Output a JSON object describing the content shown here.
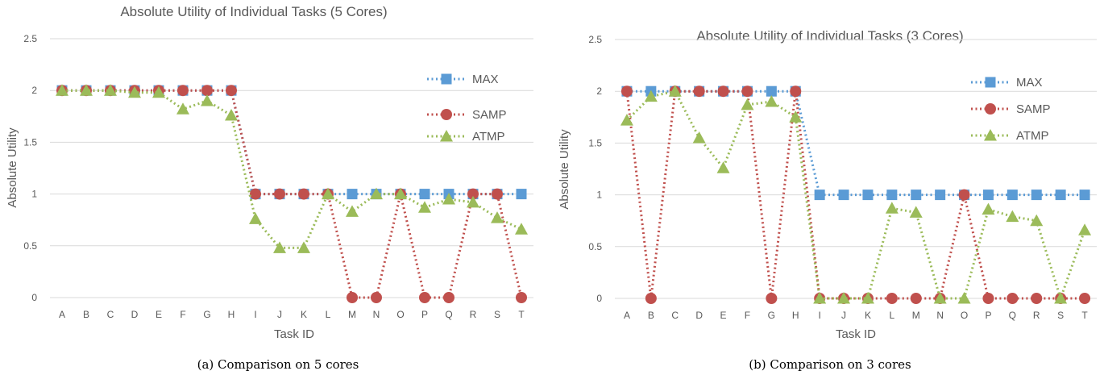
{
  "colors": {
    "MAX": "#5b9bd5",
    "SAMP": "#c0504d",
    "ATMP": "#9bbb59",
    "grid": "#d9d9d9",
    "text": "#595959"
  },
  "chart_data": [
    {
      "type": "line",
      "title": "Absolute Utility of Individual Tasks (5 Cores)",
      "xlabel": "Task ID",
      "ylabel": "Absolute Utility",
      "caption": "(a) Comparison on 5 cores",
      "categories": [
        "A",
        "B",
        "C",
        "D",
        "E",
        "F",
        "G",
        "H",
        "I",
        "J",
        "K",
        "L",
        "M",
        "N",
        "O",
        "P",
        "Q",
        "R",
        "S",
        "T"
      ],
      "ylim": [
        0,
        2.5
      ],
      "yticks": [
        "0",
        "0.5",
        "1",
        "1.5",
        "2",
        "2.5"
      ],
      "grid": true,
      "legend_position": "top-right",
      "series": [
        {
          "name": "MAX",
          "marker": "square",
          "values": [
            2,
            2,
            2,
            2,
            2,
            2,
            2,
            2,
            1,
            1,
            1,
            1,
            1,
            1,
            1,
            1,
            1,
            1,
            1,
            1
          ]
        },
        {
          "name": "SAMP",
          "marker": "circle",
          "values": [
            2,
            2,
            2,
            2,
            2,
            2,
            2,
            2,
            1,
            1,
            1,
            1,
            0,
            0,
            1,
            0,
            0,
            1,
            1,
            0
          ]
        },
        {
          "name": "ATMP",
          "marker": "triangle",
          "values": [
            2,
            2,
            2,
            1.98,
            1.98,
            1.82,
            1.9,
            1.76,
            0.76,
            0.48,
            0.48,
            1,
            0.83,
            1,
            1,
            0.87,
            0.95,
            0.92,
            0.77,
            0.66
          ]
        }
      ]
    },
    {
      "type": "line",
      "title": "Absolute Utility of Individual Tasks (3 Cores)",
      "xlabel": "Task ID",
      "ylabel": "Absolute Utility",
      "caption": "(b) Comparison on 3 cores",
      "categories": [
        "A",
        "B",
        "C",
        "D",
        "E",
        "F",
        "G",
        "H",
        "I",
        "J",
        "K",
        "L",
        "M",
        "N",
        "O",
        "P",
        "Q",
        "R",
        "S",
        "T"
      ],
      "ylim": [
        0,
        2.5
      ],
      "yticks": [
        "0",
        "0.5",
        "1",
        "1.5",
        "2",
        "2.5"
      ],
      "grid": true,
      "legend_position": "top-right",
      "series": [
        {
          "name": "MAX",
          "marker": "square",
          "values": [
            2,
            2,
            2,
            2,
            2,
            2,
            2,
            2,
            1,
            1,
            1,
            1,
            1,
            1,
            1,
            1,
            1,
            1,
            1,
            1
          ]
        },
        {
          "name": "SAMP",
          "marker": "circle",
          "values": [
            2,
            0,
            2,
            2,
            2,
            2,
            0,
            2,
            0,
            0,
            0,
            0,
            0,
            0,
            1,
            0,
            0,
            0,
            0,
            0
          ]
        },
        {
          "name": "ATMP",
          "marker": "triangle",
          "values": [
            1.72,
            1.95,
            2,
            1.55,
            1.26,
            1.87,
            1.9,
            1.75,
            0,
            0,
            0,
            0.87,
            0.83,
            0,
            0,
            0.86,
            0.79,
            0.75,
            0,
            0.66
          ]
        }
      ]
    }
  ]
}
